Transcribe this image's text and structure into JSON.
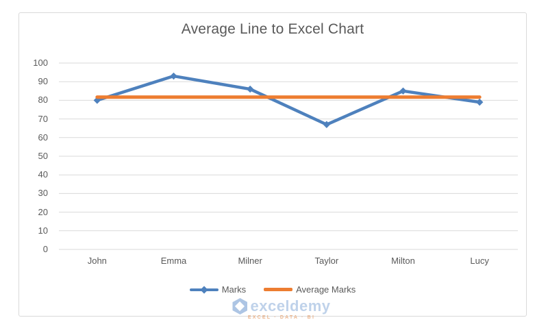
{
  "chart_data": {
    "type": "line",
    "title": "Average Line to Excel Chart",
    "categories": [
      "John",
      "Emma",
      "Milner",
      "Taylor",
      "Milton",
      "Lucy"
    ],
    "series": [
      {
        "name": "Marks",
        "style": "line-with-markers",
        "marker": "diamond",
        "color": "#4e81bd",
        "stroke_width": 4.5,
        "values": [
          80,
          93,
          86,
          67,
          85,
          79
        ]
      },
      {
        "name": "Average Marks",
        "style": "line",
        "marker": "none",
        "color": "#ed7d31",
        "stroke_width": 5,
        "values": [
          81.7,
          81.7,
          81.7,
          81.7,
          81.7,
          81.7
        ]
      }
    ],
    "xlabel": "",
    "ylabel": "",
    "ylim": [
      0,
      100
    ],
    "yticks": [
      100,
      90,
      80,
      70,
      60,
      50,
      40,
      30,
      20,
      10,
      0
    ],
    "grid": "horizontal",
    "legend_position": "bottom",
    "colors": {
      "series1": "#4e81bd",
      "series2": "#ed7d31",
      "text": "#595959",
      "grid": "#d9d9d9",
      "border": "#d9d9d9",
      "wm_logo": "#9fbbe0",
      "wm_brand": "#b5cbe7",
      "wm_tagline": "#e8a878"
    }
  },
  "watermark": {
    "brand": "exceldemy",
    "tagline": "EXCEL · DATA · BI"
  }
}
